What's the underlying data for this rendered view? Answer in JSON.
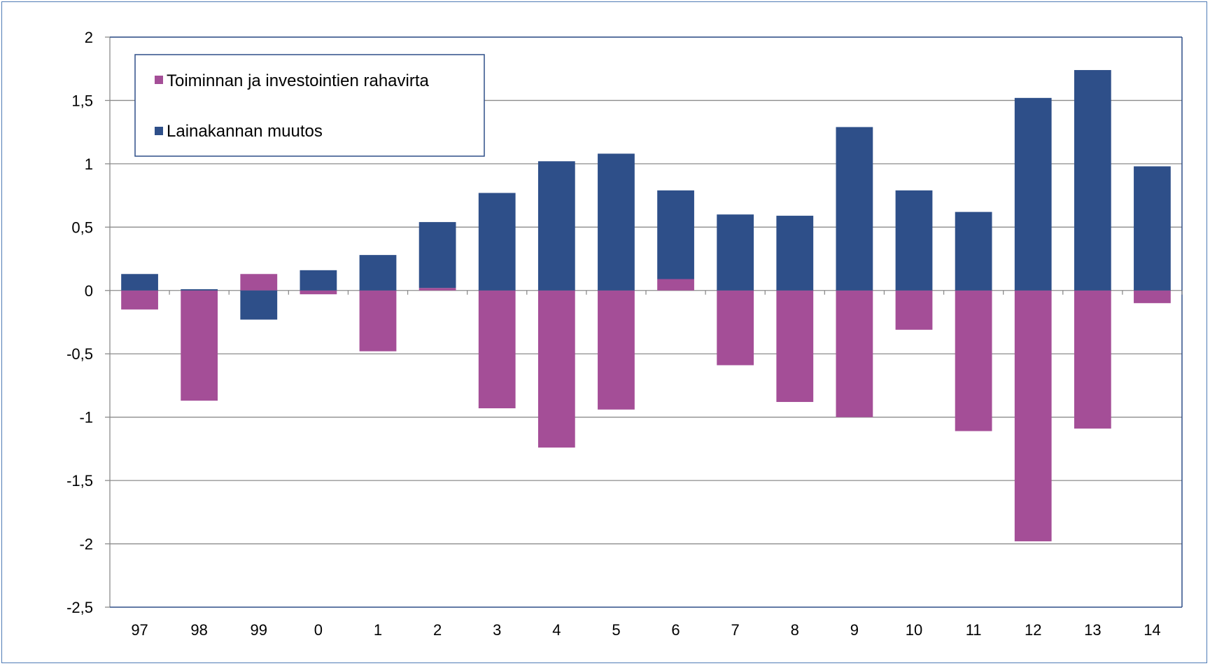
{
  "chart_data": {
    "type": "bar",
    "stacked": true,
    "categories": [
      "97",
      "98",
      "99",
      "0",
      "1",
      "2",
      "3",
      "4",
      "5",
      "6",
      "7",
      "8",
      "9",
      "10",
      "11",
      "12",
      "13",
      "14"
    ],
    "series": [
      {
        "name": "Toiminnan ja investointien rahavirta",
        "color": "#a44e97",
        "values": [
          -0.15,
          -0.87,
          0.13,
          -0.03,
          -0.48,
          0.02,
          -0.93,
          -1.24,
          -0.94,
          0.09,
          -0.59,
          -0.88,
          -1.0,
          -0.31,
          -1.11,
          -1.98,
          -1.09,
          -0.1
        ]
      },
      {
        "name": "Lainakannan muutos",
        "color": "#2e4f89",
        "values": [
          0.13,
          0.01,
          -0.23,
          0.16,
          0.28,
          0.52,
          0.77,
          1.02,
          1.08,
          0.7,
          0.6,
          0.59,
          1.29,
          0.79,
          0.62,
          1.52,
          1.74,
          0.98
        ]
      }
    ],
    "ylim": [
      -2.5,
      2
    ],
    "yticks": [
      "2",
      "1,5",
      "1",
      "0,5",
      "0",
      "-0,5",
      "-1",
      "-1,5",
      "-2",
      "-2,5"
    ],
    "ytick_values": [
      2,
      1.5,
      1,
      0.5,
      0,
      -0.5,
      -1,
      -1.5,
      -2,
      -2.5
    ],
    "grid": true,
    "legend_position": "top-left"
  }
}
